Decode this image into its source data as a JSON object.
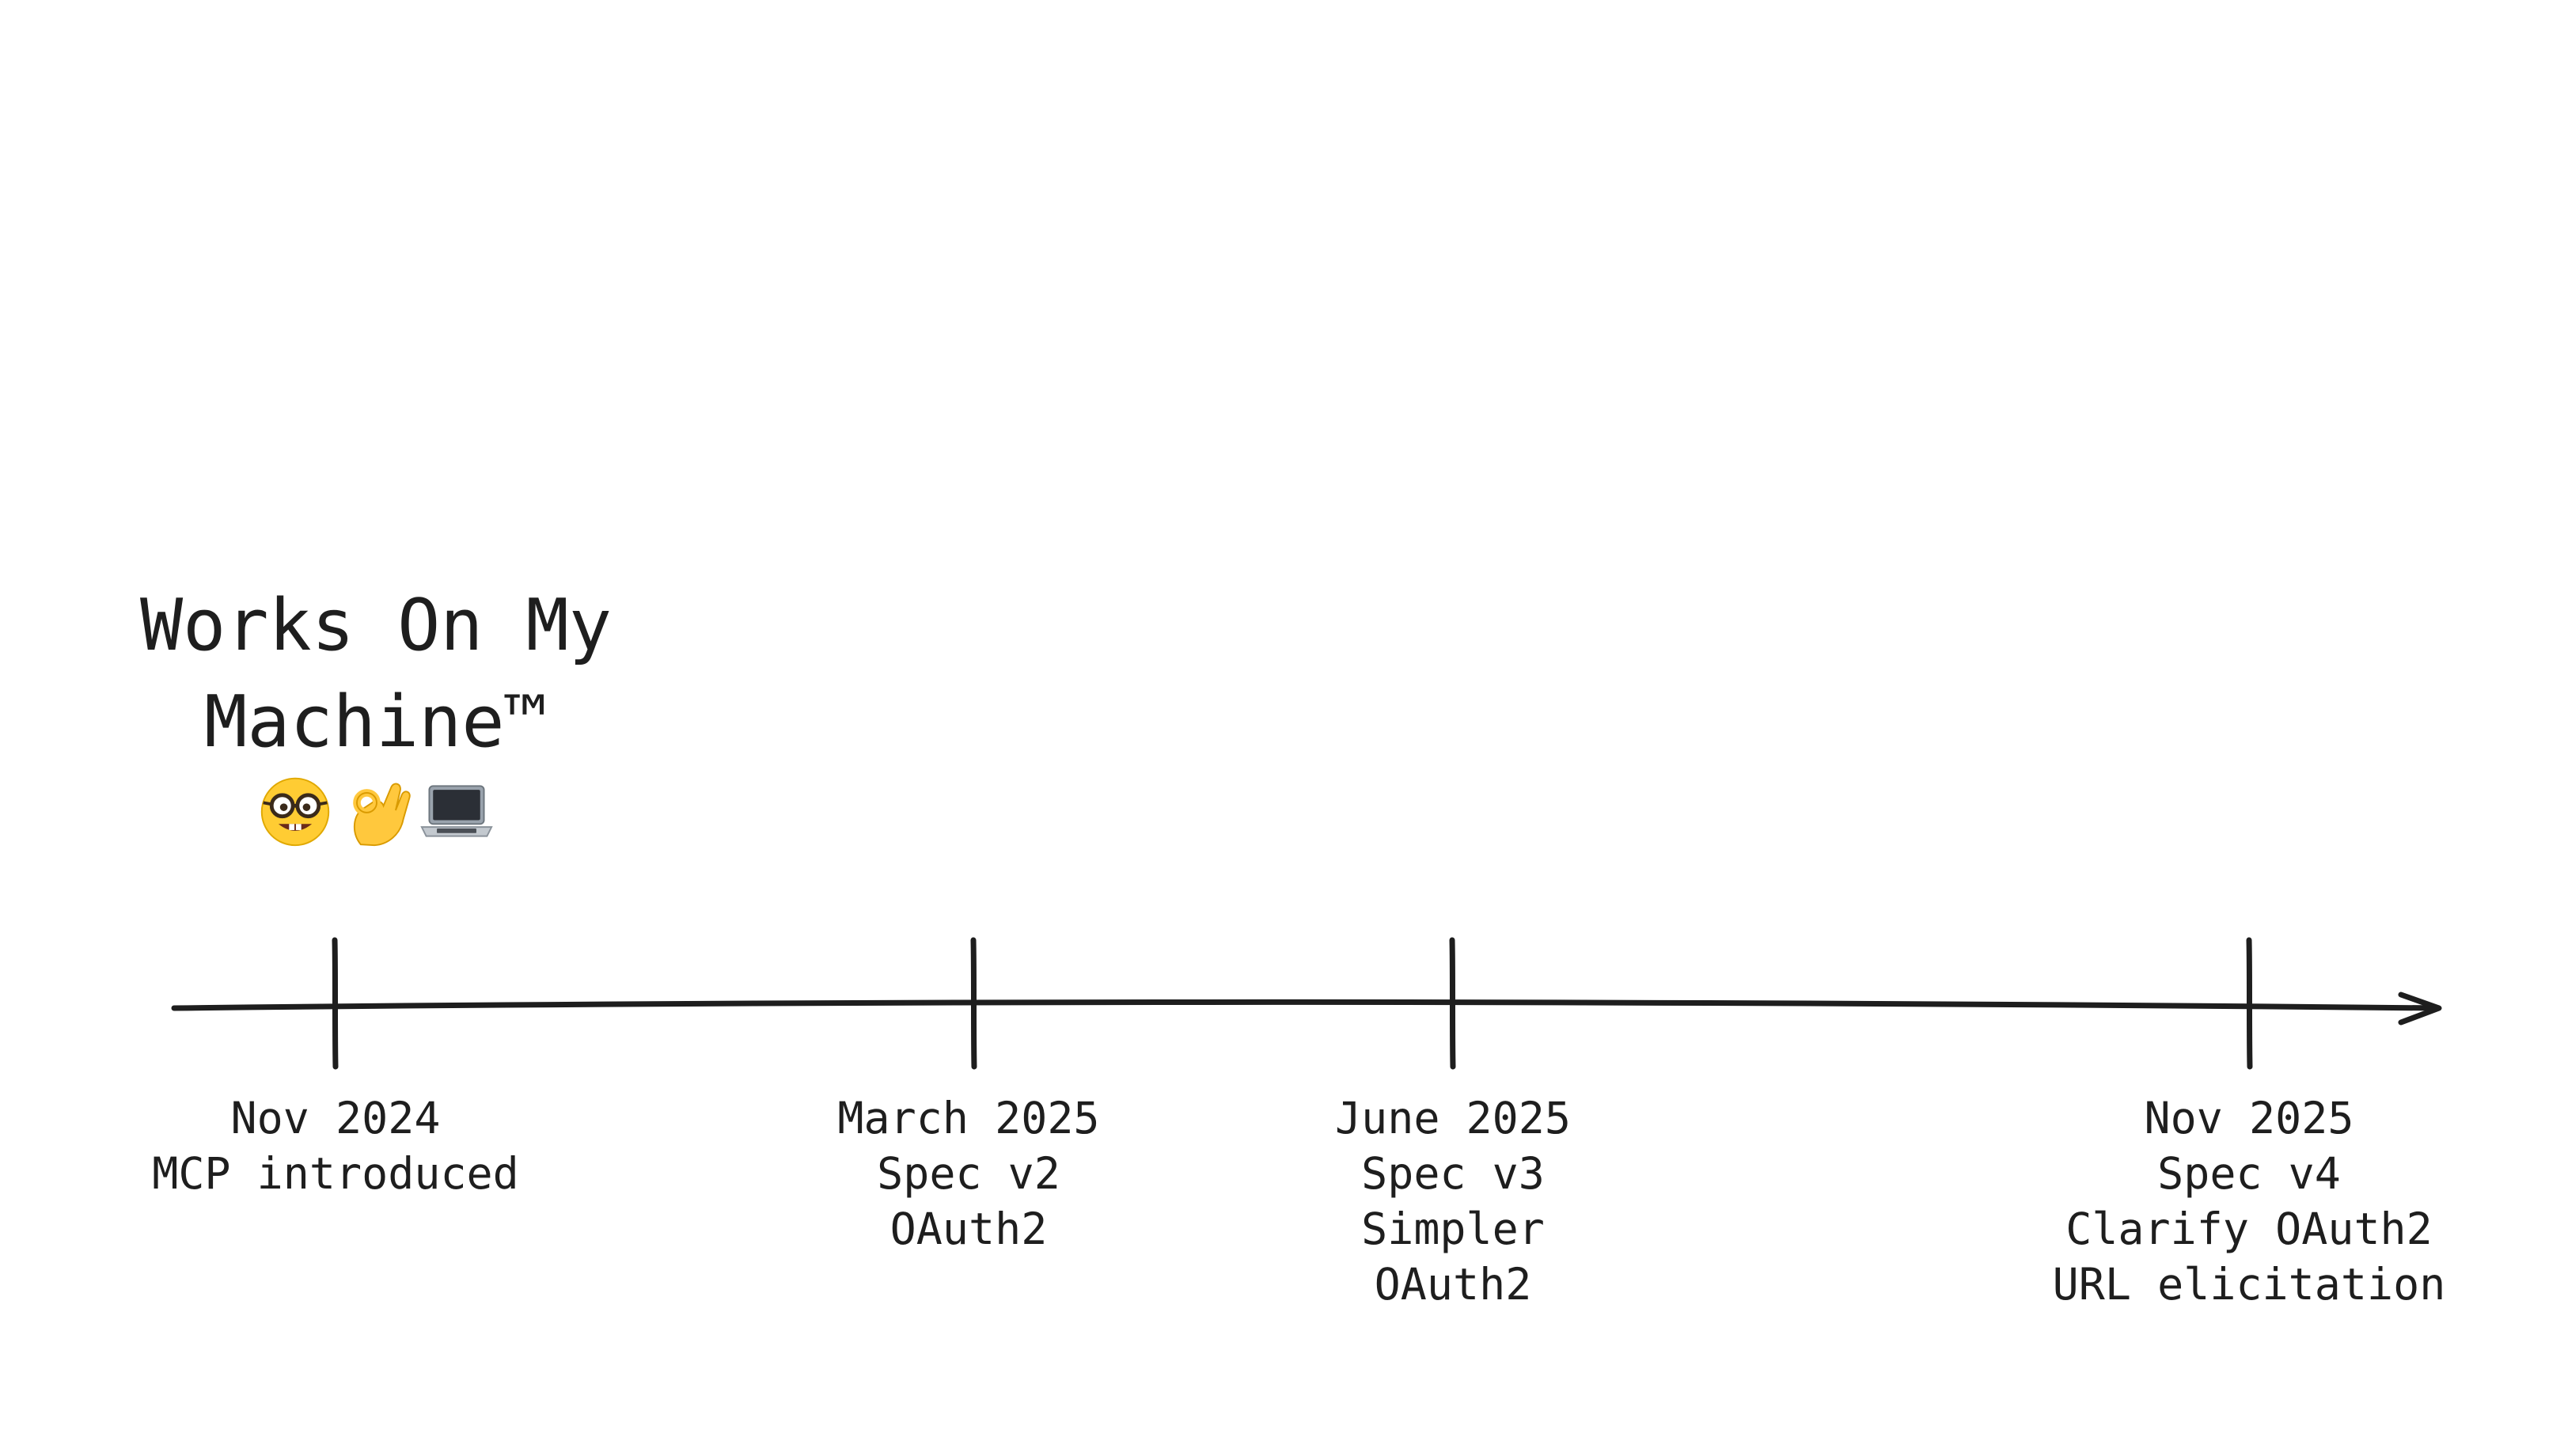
{
  "headline": {
    "lines": [
      "Works On My",
      "Machine™"
    ],
    "emojis": [
      {
        "icon": "nerd-face-icon"
      },
      {
        "icon": "ok-hand-icon"
      },
      {
        "icon": "laptop-icon"
      }
    ]
  },
  "timeline": {
    "milestones": [
      {
        "date": "Nov 2024",
        "lines": [
          "MCP introduced"
        ]
      },
      {
        "date": "March 2025",
        "lines": [
          "Spec v2",
          "OAuth2"
        ]
      },
      {
        "date": "June 2025",
        "lines": [
          "Spec v3",
          "Simpler",
          "OAuth2"
        ]
      },
      {
        "date": "Nov 2025",
        "lines": [
          "Spec v4",
          "Clarify OAuth2",
          "URL elicitation"
        ]
      }
    ]
  },
  "colors": {
    "ink": "#1e1e1e",
    "background": "#ffffff"
  }
}
